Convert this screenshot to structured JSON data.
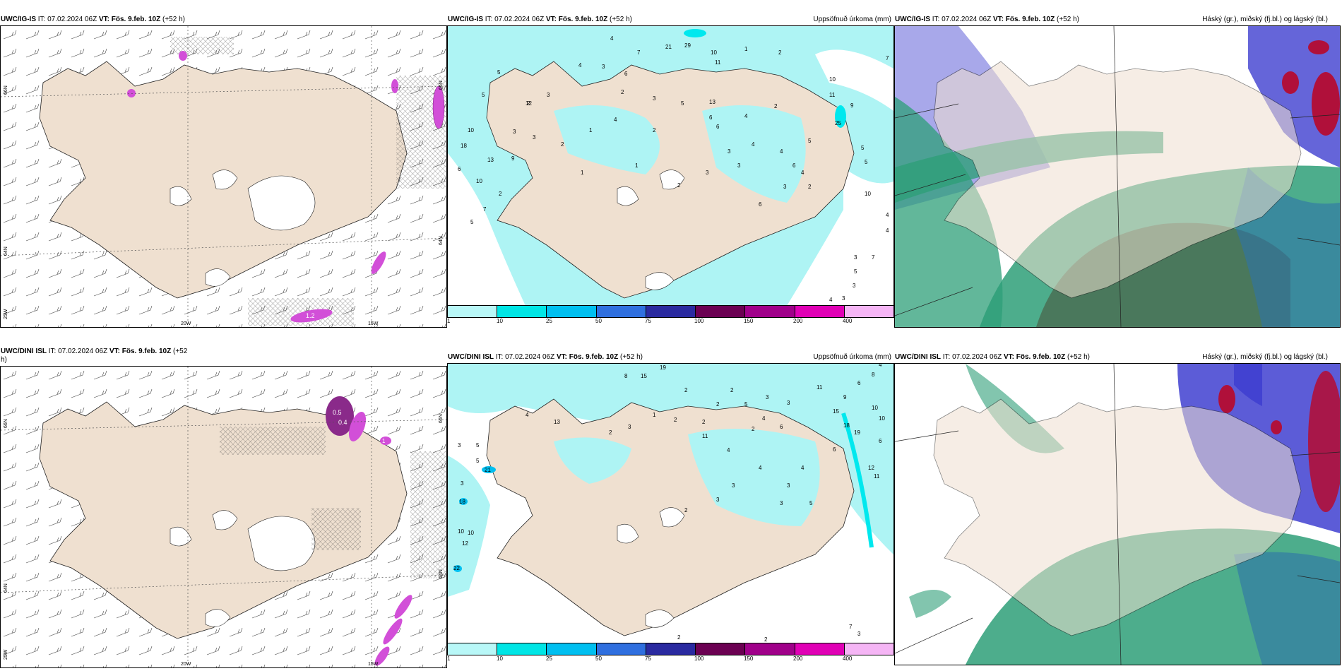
{
  "colors": {
    "land": "#efe0d0",
    "precip_light": "#aef4f4",
    "cyan": "#00e8ee",
    "hatched": "#333333",
    "magenta": "#d24fd8",
    "green": "#2e9f78",
    "blue": "#3f3fd0",
    "red": "#b0103a"
  },
  "colorbar": {
    "colors": [
      "#b8f7f7",
      "#00e5e5",
      "#00bff0",
      "#2f6fdf",
      "#2a2aa0",
      "#6b0052",
      "#a0008a",
      "#e000b5",
      "#f5b5f5"
    ],
    "ticks": [
      "1",
      "10",
      "25",
      "50",
      "75",
      "100",
      "150",
      "200",
      "400"
    ]
  },
  "rows": [
    {
      "row": "top",
      "left": {
        "model": "UWC/IG-IS",
        "it_label": "IT:",
        "it_value": "07.02.2024 06Z",
        "vt_label": "VT:",
        "vt_value": "Fös. 9.feb. 10Z",
        "lead": "(+52 h)",
        "lat_labels": [
          "66N",
          "64N",
          "25W"
        ],
        "lon_labels": [
          "20W",
          "15W"
        ],
        "right_lat_labels": [
          "66N",
          "64N"
        ],
        "contour_labels": [
          "1.2"
        ]
      },
      "middle": {
        "model": "UWC/IG-IS",
        "it_label": "IT:",
        "it_value": "07.02.2024 06Z",
        "vt_label": "VT:",
        "vt_value": "Fös. 9.feb. 10Z",
        "lead": "(+52 h)",
        "right_title": "Uppsöfnuð úrkoma (mm)",
        "numbers": [
          "4",
          "7",
          "21",
          "29",
          "10",
          "11",
          "1",
          "2",
          "7",
          "5",
          "5",
          "3",
          "6",
          "4",
          "3",
          "2",
          "12",
          "10",
          "13",
          "2",
          "3",
          "5",
          "6",
          "4",
          "2",
          "11",
          "10",
          "9",
          "18",
          "13",
          "9",
          "10",
          "6",
          "7",
          "5",
          "2",
          "3",
          "1",
          "3",
          "2",
          "4",
          "2",
          "5",
          "25",
          "5",
          "5",
          "4",
          "6",
          "10",
          "3",
          "2",
          "1",
          "1",
          "3",
          "4",
          "4",
          "4",
          "3",
          "3",
          "2",
          "3",
          "7",
          "5",
          "3",
          "4",
          "4",
          "3",
          "6",
          "6"
        ]
      },
      "right": {
        "model": "UWC/IG-IS",
        "it_label": "IT:",
        "it_value": "07.02.2024 06Z",
        "vt_label": "VT:",
        "vt_value": "Fös. 9.feb. 10Z",
        "lead": "(+52 h)",
        "right_title": "Háský (gr.), miðský (fj.bl.) og lágský (bl.)"
      }
    },
    {
      "row": "bottom",
      "left": {
        "model": "UWC/DINI ISL",
        "it_label": "IT:",
        "it_value": "07.02.2024 06Z",
        "vt_label": "VT:",
        "vt_value": "Fös. 9.feb. 10Z",
        "lead": "(+52",
        "lead2": "h)",
        "lat_labels": [
          "66N",
          "64N",
          "25W"
        ],
        "lon_labels": [
          "20W",
          "15W"
        ],
        "right_lat_labels": [
          "66N",
          "64N"
        ],
        "contour_labels": [
          "0.5",
          "0.4",
          "1"
        ]
      },
      "middle": {
        "model": "UWC/DINI ISL",
        "it_label": "IT:",
        "it_value": "07.02.2024 06Z",
        "vt_label": "VT:",
        "vt_value": "Fös. 9.feb. 10Z",
        "lead": "(+52 h)",
        "right_title": "Uppsöfnuð úrkoma (mm)",
        "numbers": [
          "8",
          "15",
          "19",
          "8",
          "6",
          "4",
          "2",
          "2",
          "11",
          "3",
          "3",
          "4",
          "2",
          "2",
          "6",
          "1",
          "2",
          "2",
          "2",
          "3",
          "5",
          "9",
          "10",
          "10",
          "13",
          "4",
          "21",
          "3",
          "5",
          "11",
          "4",
          "15",
          "18",
          "19",
          "6",
          "18",
          "3",
          "10",
          "10",
          "3",
          "12",
          "11",
          "22",
          "12",
          "5",
          "3",
          "6",
          "4",
          "4",
          "3",
          "2",
          "7",
          "2",
          "3",
          "2",
          "3",
          "5"
        ]
      },
      "right": {
        "model": "UWC/DINI ISL",
        "it_label": "IT:",
        "it_value": "07.02.2024 06Z",
        "vt_label": "VT:",
        "vt_value": "Fös. 9.feb. 10Z",
        "lead": "(+52 h)",
        "right_title": "Háský (gr.), miðský (fj.bl.) og lágský (bl.)"
      }
    }
  ]
}
